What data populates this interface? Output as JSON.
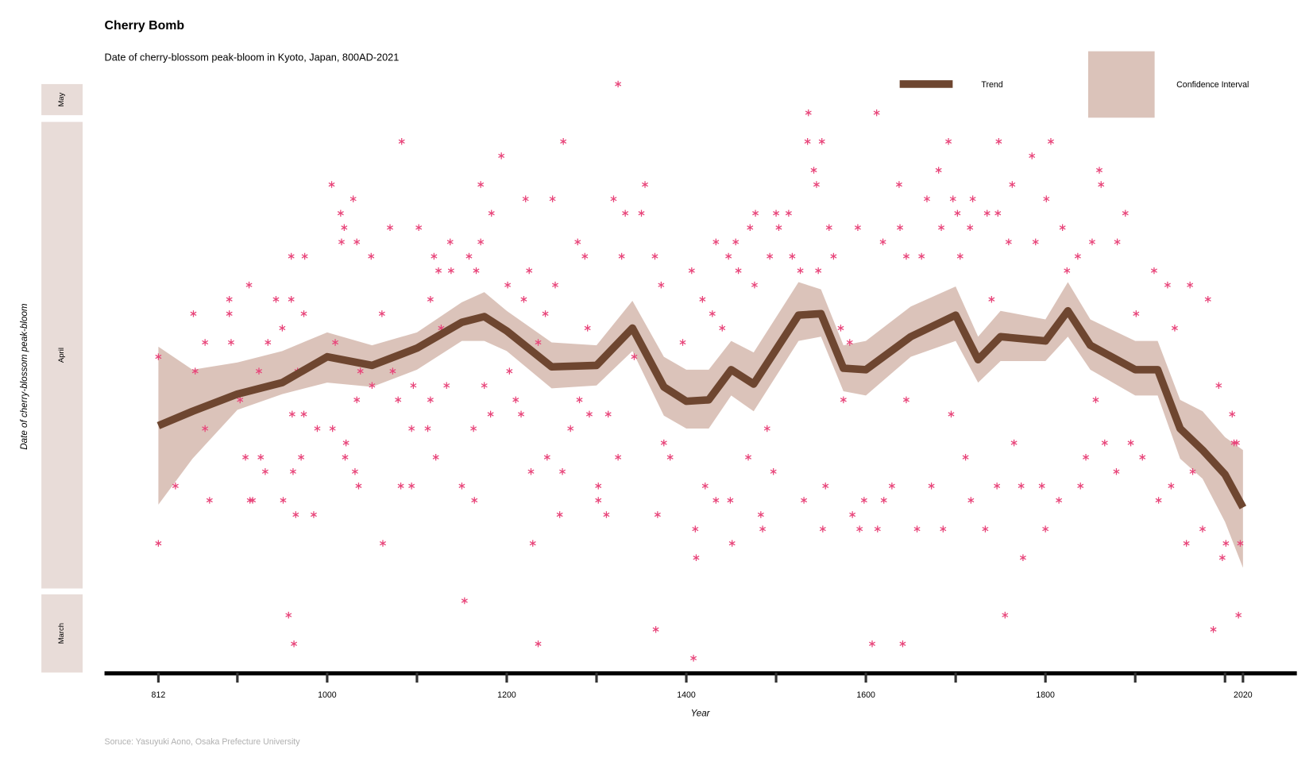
{
  "chart_data": {
    "type": "scatter",
    "title": "Cherry Bomb",
    "subtitle": "Date of cherry-blossom peak-bloom in Kyoto, Japan, 800AD-2021",
    "x_label": "Year",
    "y_label": "Date of cherry-blossom peak-bloom",
    "source": "Soruce: Yasuyuki Aono, Osaka Prefecture University",
    "y_bands": [
      "May",
      "April",
      "March"
    ],
    "legend": "top-right",
    "xlim": [
      752,
      2080
    ],
    "ylim": [
      84,
      125
    ],
    "xticks": [
      812,
      1000,
      1200,
      1400,
      1600,
      1800,
      2020
    ],
    "xminor_ticks": [
      900,
      1100,
      1300,
      1500,
      1700,
      1900,
      2000
    ],
    "points": {
      "color": "#e8457a",
      "x": [
        812,
        812,
        831,
        851,
        853,
        864,
        864,
        869,
        891,
        891,
        893,
        903,
        909,
        913,
        914,
        917,
        924,
        926,
        931,
        934,
        943,
        950,
        951,
        957,
        960,
        960,
        961,
        962,
        963,
        965,
        967,
        971,
        974,
        975,
        974,
        985,
        989,
        1005,
        1006,
        1009,
        1015,
        1016,
        1019,
        1020,
        1021,
        1029,
        1031,
        1033,
        1033,
        1035,
        1037,
        1049,
        1050,
        1061,
        1062,
        1070,
        1073,
        1079,
        1083,
        1082,
        1094,
        1096,
        1094,
        1102,
        1112,
        1115,
        1115,
        1119,
        1121,
        1124,
        1127,
        1133,
        1138,
        1137,
        1150,
        1153,
        1158,
        1163,
        1164,
        1166,
        1171,
        1171,
        1175,
        1183,
        1182,
        1194,
        1201,
        1203,
        1210,
        1216,
        1221,
        1219,
        1225,
        1229,
        1227,
        1235,
        1235,
        1243,
        1245,
        1251,
        1254,
        1259,
        1263,
        1262,
        1271,
        1279,
        1281,
        1287,
        1290,
        1292,
        1302,
        1302,
        1311,
        1313,
        1319,
        1324,
        1324,
        1328,
        1332,
        1342,
        1350,
        1354,
        1365,
        1366,
        1368,
        1372,
        1375,
        1382,
        1396,
        1406,
        1408,
        1410,
        1411,
        1418,
        1421,
        1429,
        1433,
        1433,
        1440,
        1447,
        1449,
        1451,
        1455,
        1458,
        1469,
        1471,
        1476,
        1477,
        1483,
        1485,
        1490,
        1493,
        1497,
        1500,
        1503,
        1514,
        1518,
        1527,
        1531,
        1535,
        1536,
        1542,
        1545,
        1547,
        1551,
        1552,
        1555,
        1559,
        1564,
        1572,
        1575,
        1582,
        1585,
        1591,
        1593,
        1598,
        1607,
        1612,
        1613,
        1619,
        1620,
        1629,
        1637,
        1638,
        1641,
        1645,
        1645,
        1657,
        1662,
        1668,
        1673,
        1681,
        1684,
        1686,
        1692,
        1695,
        1697,
        1702,
        1705,
        1711,
        1716,
        1717,
        1719,
        1733,
        1735,
        1740,
        1746,
        1747,
        1748,
        1755,
        1759,
        1763,
        1765,
        1773,
        1775,
        1785,
        1789,
        1796,
        1800,
        1801,
        1806,
        1815,
        1819,
        1824,
        1836,
        1839,
        1845,
        1852,
        1856,
        1860,
        1862,
        1866,
        1879,
        1880,
        1889,
        1895,
        1901,
        1908,
        1921,
        1926,
        1936,
        1940,
        1944,
        1957,
        1961,
        1964,
        1975,
        1981,
        1987,
        1993,
        1997,
        2001,
        2008,
        2010,
        2013,
        2015,
        2017
      ],
      "y": [
        106,
        93,
        97,
        109,
        105,
        107,
        101,
        96,
        110,
        109,
        107,
        103,
        99,
        111,
        96,
        96,
        105,
        99,
        98,
        107,
        110,
        108,
        96,
        88,
        110,
        113,
        102,
        98,
        86,
        95,
        105,
        99,
        109,
        113,
        102,
        95,
        101,
        118,
        101,
        107,
        116,
        114,
        115,
        99,
        100,
        117,
        98,
        114,
        103,
        97,
        105,
        113,
        104,
        109,
        93,
        115,
        105,
        103,
        121,
        97,
        97,
        104,
        101,
        115,
        101,
        110,
        103,
        113,
        99,
        112,
        108,
        104,
        112,
        114,
        97,
        89,
        113,
        101,
        96,
        112,
        118,
        114,
        104,
        116,
        102,
        120,
        111,
        105,
        103,
        102,
        117,
        110,
        112,
        93,
        98,
        86,
        107,
        109,
        99,
        117,
        111,
        95,
        121,
        98,
        101,
        114,
        103,
        113,
        108,
        102,
        97,
        96,
        95,
        102,
        117,
        125,
        99,
        113,
        116,
        106,
        116,
        118,
        113,
        87,
        95,
        111,
        100,
        99,
        107,
        112,
        85,
        94,
        92,
        110,
        97,
        109,
        114,
        96,
        108,
        113,
        96,
        93,
        114,
        112,
        99,
        115,
        111,
        116,
        95,
        94,
        101,
        113,
        98,
        116,
        115,
        116,
        113,
        112,
        96,
        121,
        123,
        119,
        118,
        112,
        121,
        94,
        97,
        115,
        113,
        108,
        103,
        107,
        95,
        115,
        94,
        96,
        86,
        123,
        94,
        114,
        96,
        97,
        118,
        115,
        86,
        113,
        103,
        94,
        113,
        117,
        97,
        119,
        115,
        94,
        121,
        102,
        117,
        116,
        113,
        99,
        115,
        96,
        117,
        94,
        116,
        110,
        97,
        116,
        121,
        88,
        114,
        118,
        100,
        97,
        92,
        120,
        114,
        97,
        94,
        117,
        121,
        96,
        115,
        112,
        113,
        97,
        99,
        114,
        103,
        119,
        118,
        100,
        98,
        114,
        116,
        100,
        109,
        99,
        112,
        96,
        111,
        97,
        108,
        93,
        111,
        98,
        94,
        110,
        87,
        104,
        92,
        93,
        102,
        100,
        100,
        88,
        93
      ]
    },
    "trend": {
      "name": "Trend",
      "color": "#6e4630",
      "x": [
        812,
        850,
        900,
        950,
        1000,
        1050,
        1100,
        1150,
        1175,
        1200,
        1250,
        1300,
        1340,
        1375,
        1400,
        1425,
        1450,
        1475,
        1525,
        1550,
        1575,
        1600,
        1650,
        1700,
        1725,
        1750,
        1800,
        1825,
        1850,
        1900,
        1925,
        1950,
        1975,
        2000,
        2020
      ],
      "values": [
        101.2,
        102.2,
        103.4,
        104.2,
        106.0,
        105.4,
        106.6,
        108.4,
        108.8,
        107.8,
        105.3,
        105.4,
        108.0,
        103.9,
        102.9,
        103.0,
        105.1,
        104.1,
        108.9,
        109.0,
        105.2,
        105.1,
        107.4,
        108.9,
        105.8,
        107.4,
        107.1,
        109.2,
        106.8,
        105.1,
        105.1,
        101.0,
        99.5,
        97.8,
        95.5
      ]
    },
    "band": {
      "name": "Confidence Interval",
      "color": "#dbc3ba",
      "lower": [
        95.7,
        98.9,
        102.3,
        103.4,
        104.2,
        103.9,
        105.1,
        107.1,
        107.1,
        106.4,
        103.8,
        104.0,
        106.4,
        101.9,
        101.0,
        101.0,
        103.3,
        102.2,
        107.1,
        107.4,
        103.6,
        103.3,
        106.0,
        107.1,
        104.2,
        105.7,
        105.7,
        107.4,
        105.1,
        103.3,
        103.3,
        98.9,
        97.5,
        94.5,
        91.3
      ],
      "upper": [
        106.7,
        105.1,
        105.6,
        106.4,
        107.7,
        106.8,
        107.7,
        109.8,
        110.5,
        109.2,
        107.0,
        106.8,
        109.9,
        106.0,
        105.1,
        105.1,
        107.1,
        106.3,
        111.2,
        110.7,
        106.8,
        107.1,
        109.5,
        110.9,
        107.4,
        109.2,
        108.6,
        111.2,
        108.6,
        107.1,
        107.1,
        103.0,
        102.2,
        100.4,
        99.5
      ]
    }
  }
}
